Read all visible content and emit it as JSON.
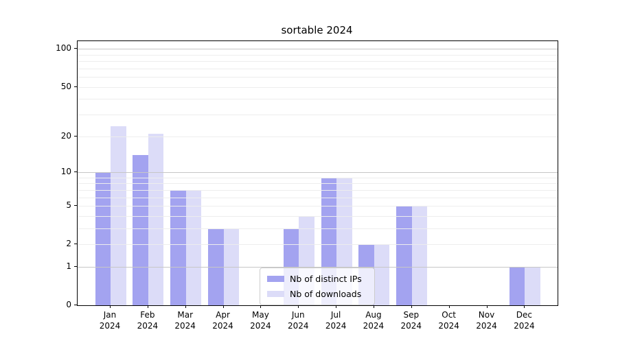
{
  "title": "sortable 2024",
  "chart_data": {
    "type": "bar",
    "title": "sortable 2024",
    "xlabel": "",
    "ylabel": "",
    "year_label": "2024",
    "categories": [
      "Jan",
      "Feb",
      "Mar",
      "Apr",
      "May",
      "Jun",
      "Jul",
      "Aug",
      "Sep",
      "Oct",
      "Nov",
      "Dec"
    ],
    "series": [
      {
        "name": "Nb of distinct IPs",
        "color": "#a3a3f0",
        "values": [
          10,
          14,
          7,
          3,
          0,
          3,
          9,
          2,
          5,
          0,
          0,
          1
        ]
      },
      {
        "name": "Nb of downloads",
        "color": "#dcdcf8",
        "values": [
          24,
          21,
          7,
          3,
          0,
          4,
          9,
          2,
          5,
          0,
          0,
          1
        ]
      }
    ],
    "y_scale": "log1p",
    "ylim": [
      0,
      115
    ],
    "y_tick_values": [
      0,
      1,
      2,
      5,
      10,
      20,
      50,
      100
    ],
    "y_major_gridlines": [
      1,
      10,
      100
    ],
    "y_minor_gridlines": [
      2,
      3,
      4,
      5,
      6,
      7,
      8,
      9,
      20,
      30,
      40,
      50,
      60,
      70,
      80,
      90
    ],
    "grid": true,
    "legend_position": "lower center",
    "legend_entries": [
      "Nb of distinct IPs",
      "Nb of downloads"
    ]
  },
  "colors": {
    "bar_distinct_ips": "#a3a3f0",
    "bar_downloads": "#dcdcf8",
    "grid_major": "#c6c6c6",
    "grid_minor": "#ededed",
    "axis": "#000000",
    "legend_border": "#cccccc",
    "background": "#ffffff"
  }
}
